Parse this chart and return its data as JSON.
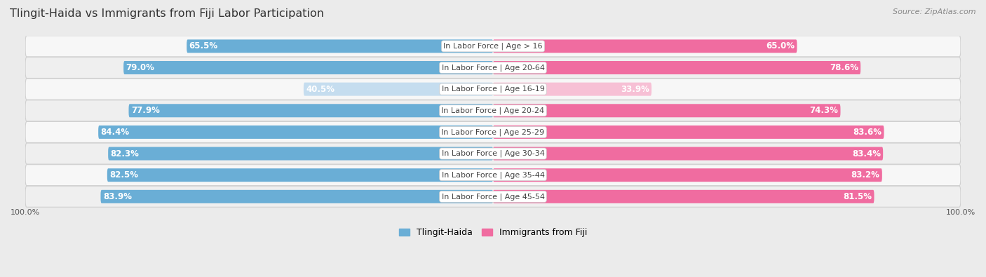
{
  "title": "Tlingit-Haida vs Immigrants from Fiji Labor Participation",
  "source": "Source: ZipAtlas.com",
  "categories": [
    "In Labor Force | Age > 16",
    "In Labor Force | Age 20-64",
    "In Labor Force | Age 16-19",
    "In Labor Force | Age 20-24",
    "In Labor Force | Age 25-29",
    "In Labor Force | Age 30-34",
    "In Labor Force | Age 35-44",
    "In Labor Force | Age 45-54"
  ],
  "tlingit_values": [
    65.5,
    79.0,
    40.5,
    77.9,
    84.4,
    82.3,
    82.5,
    83.9
  ],
  "fiji_values": [
    65.0,
    78.6,
    33.9,
    74.3,
    83.6,
    83.4,
    83.2,
    81.5
  ],
  "tlingit_color": "#6AAED6",
  "fiji_color": "#F06CA0",
  "tlingit_light_color": "#C5DDEF",
  "fiji_light_color": "#F7C0D5",
  "bg_color": "#EBEBEB",
  "row_bg_even": "#F7F7F7",
  "row_bg_odd": "#EFEFEF",
  "max_value": 100.0,
  "bar_height": 0.62,
  "title_fontsize": 11.5,
  "label_fontsize": 8.0,
  "value_fontsize": 8.5,
  "legend_fontsize": 9,
  "source_fontsize": 8
}
